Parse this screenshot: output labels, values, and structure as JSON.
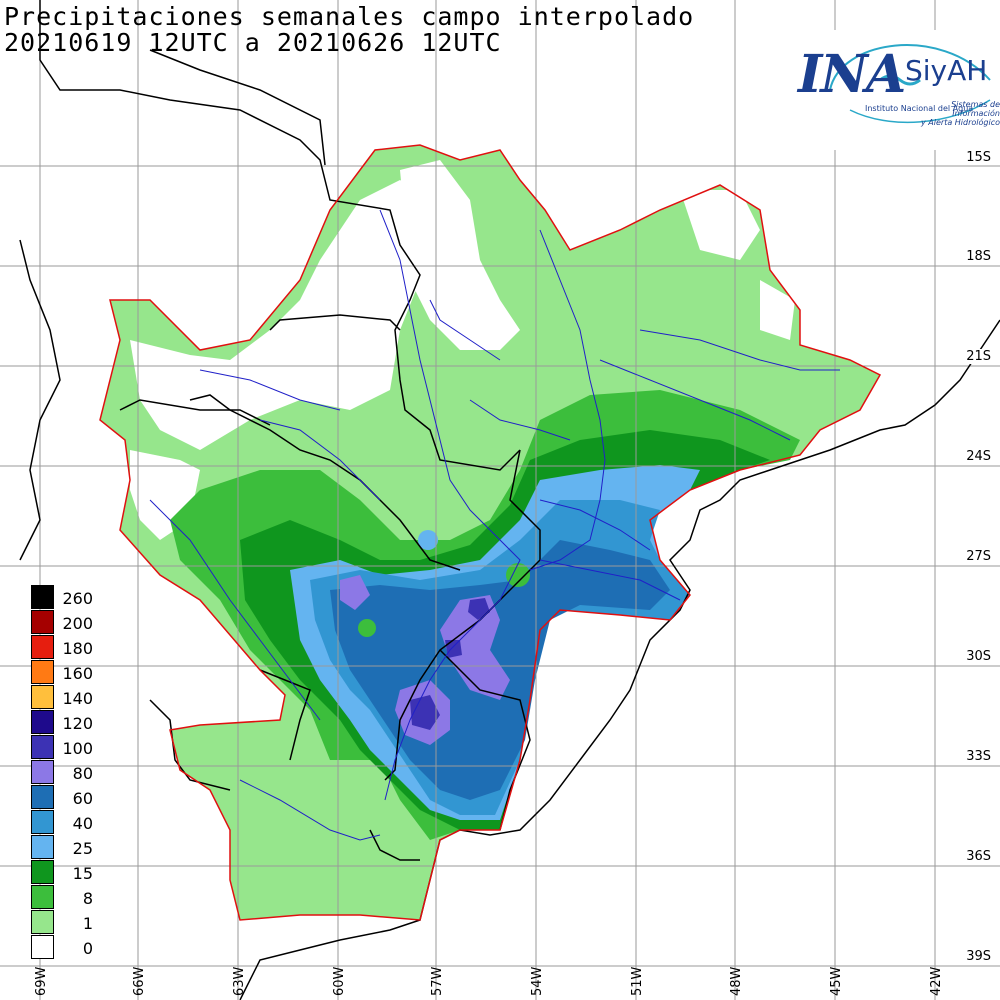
{
  "title": "Precipitaciones semanales campo interpolado",
  "subtitle": "20210619 12UTC a 20210626 12UTC",
  "logo": {
    "brand": "INA",
    "system": "SiyAH",
    "institute": "Instituto Nacional del Agua",
    "tagline_1": "Sistemas de Información",
    "tagline_2": "y Alerta Hidrológico"
  },
  "legend": [
    {
      "label": "260",
      "color": "#000000"
    },
    {
      "label": "200",
      "color": "#a50000"
    },
    {
      "label": "180",
      "color": "#e61e0f"
    },
    {
      "label": "160",
      "color": "#ff7a14"
    },
    {
      "label": "140",
      "color": "#ffbf3c"
    },
    {
      "label": "120",
      "color": "#1e0a8c"
    },
    {
      "label": "100",
      "color": "#3c32b4"
    },
    {
      "label": "80",
      "color": "#8c78e6"
    },
    {
      "label": "60",
      "color": "#1e6eb4"
    },
    {
      "label": "40",
      "color": "#3296d2"
    },
    {
      "label": "25",
      "color": "#64b4f0"
    },
    {
      "label": "15",
      "color": "#0f961e"
    },
    {
      "label": "8",
      "color": "#3cbe3c"
    },
    {
      "label": "1",
      "color": "#96e68c"
    },
    {
      "label": "0",
      "color": "#ffffff"
    }
  ],
  "lat_labels": [
    "15S",
    "18S",
    "21S",
    "24S",
    "27S",
    "30S",
    "33S",
    "36S",
    "39S"
  ],
  "lon_labels": [
    "69W",
    "66W",
    "63W",
    "60W",
    "57W",
    "54W",
    "51W",
    "48W",
    "45W",
    "42W"
  ],
  "colors": {
    "grid": "#9a9a9a",
    "rivers": "#2020c8",
    "basin_outline": "#e01010",
    "borders": "#000000"
  }
}
